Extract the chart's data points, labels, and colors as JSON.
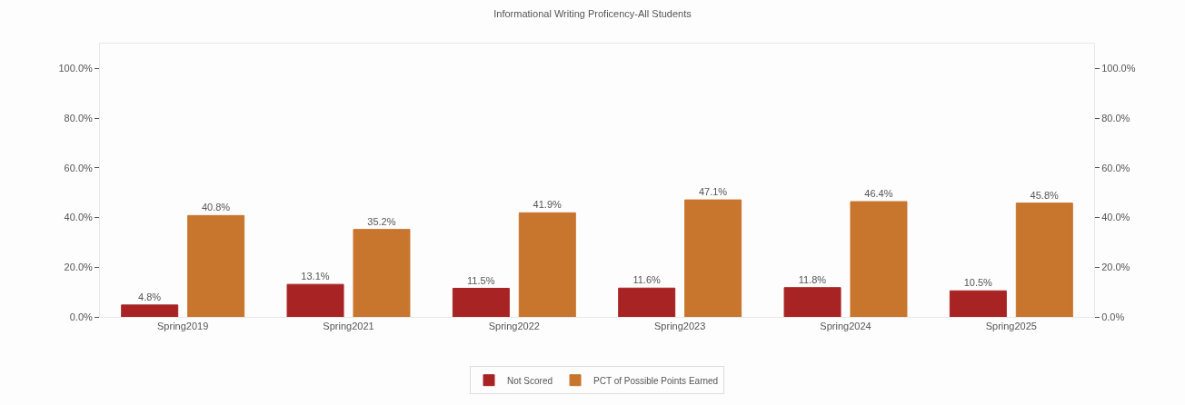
{
  "chart_data": {
    "type": "bar",
    "title": "Informational Writing Proficency-All Students",
    "categories": [
      "Spring2019",
      "Spring2021",
      "Spring2022",
      "Spring2023",
      "Spring2024",
      "Spring2025"
    ],
    "series": [
      {
        "name": "Not Scored",
        "color": "#a82424",
        "values": [
          4.8,
          13.1,
          11.5,
          11.6,
          11.8,
          10.5
        ],
        "value_labels": [
          "4.8%",
          "13.1%",
          "11.5%",
          "11.6%",
          "11.8%",
          "10.5%"
        ]
      },
      {
        "name": "PCT of Possible Points Earned",
        "color": "#c8752e",
        "values": [
          40.8,
          35.2,
          41.9,
          47.1,
          46.4,
          45.8
        ],
        "value_labels": [
          "40.8%",
          "35.2%",
          "41.9%",
          "47.1%",
          "46.4%",
          "45.8%"
        ]
      }
    ],
    "ylim": [
      0,
      110
    ],
    "yticks": [
      {
        "value": 0,
        "label": "0.0%"
      },
      {
        "value": 20,
        "label": "20.0%"
      },
      {
        "value": 40,
        "label": "40.0%"
      },
      {
        "value": 60,
        "label": "60.0%"
      },
      {
        "value": 80,
        "label": "80.0%"
      },
      {
        "value": 100,
        "label": "100.0%"
      }
    ],
    "y2lim": [
      0,
      110
    ],
    "y2ticks": [
      {
        "value": 0,
        "label": "0.0%"
      },
      {
        "value": 20,
        "label": "20.0%"
      },
      {
        "value": 40,
        "label": "40.0%"
      },
      {
        "value": 60,
        "label": "60.0%"
      },
      {
        "value": 80,
        "label": "80.0%"
      },
      {
        "value": 100,
        "label": "100.0%"
      }
    ],
    "grid": false,
    "legend": "bottom"
  }
}
